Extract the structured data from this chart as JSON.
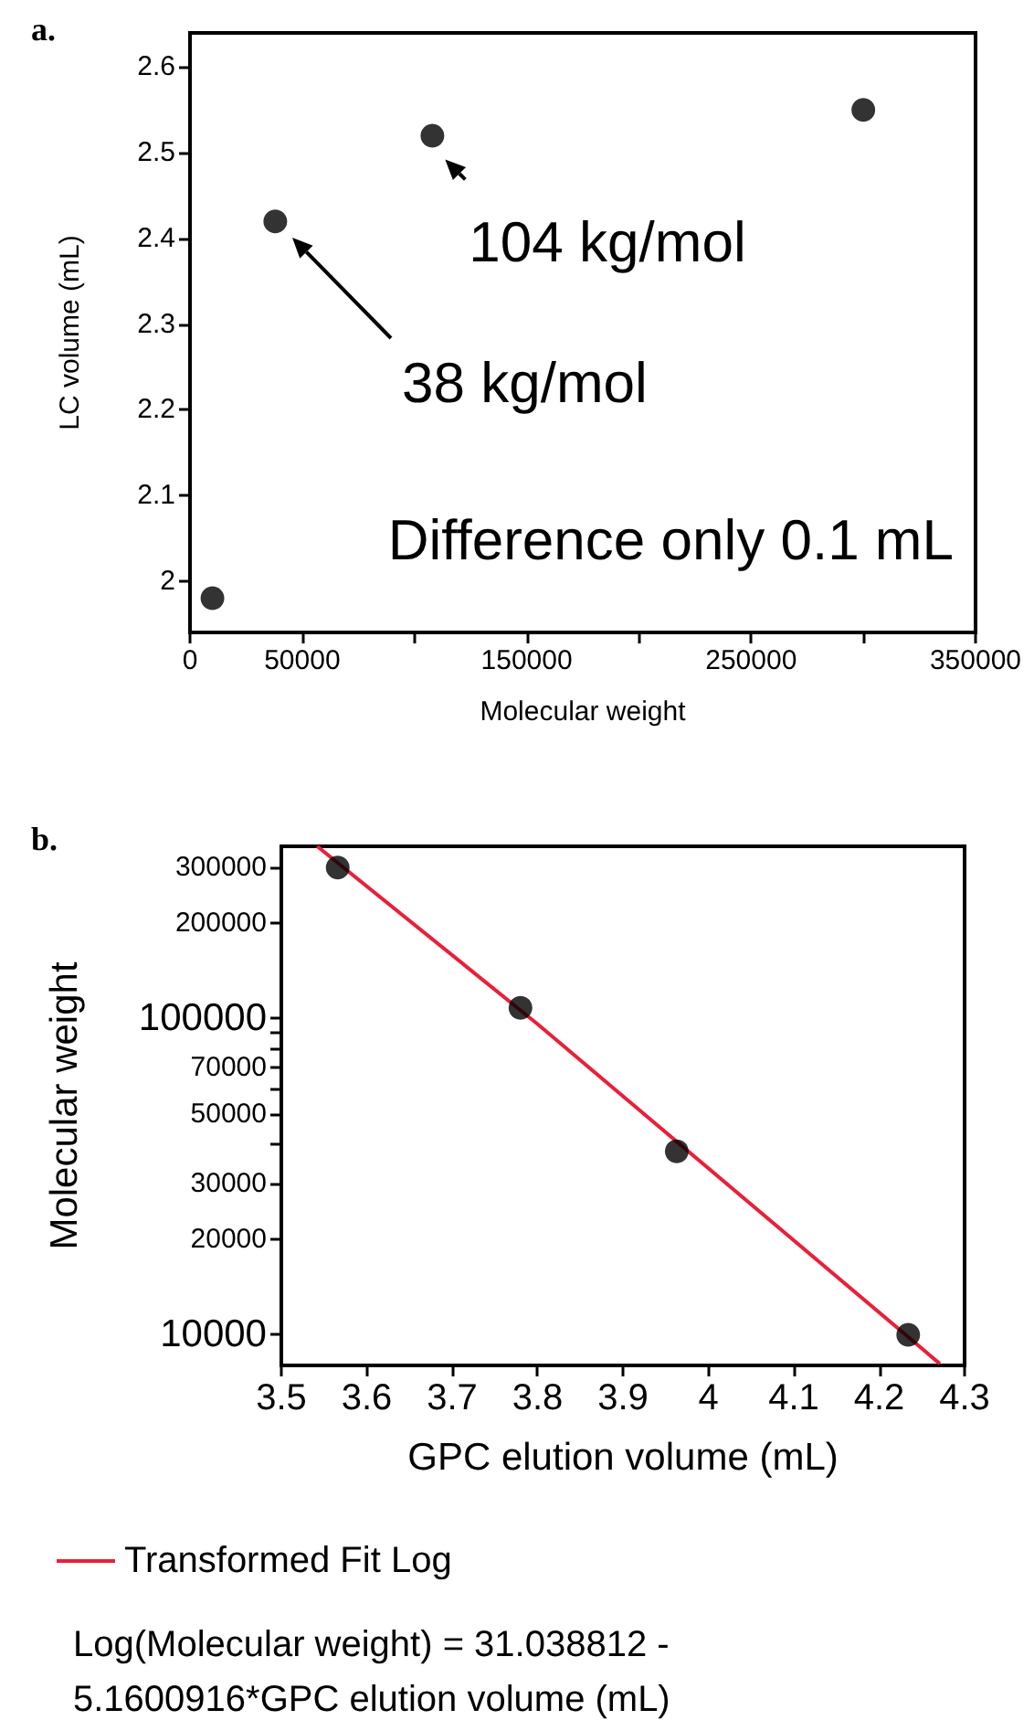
{
  "chart_data": [
    {
      "type": "scatter",
      "title": "a.",
      "xlabel": "Molecular weight",
      "ylabel": "LC volume (mL)",
      "marker": "circle",
      "grid": false,
      "x": [
        10000,
        38000,
        108000,
        300000
      ],
      "series": [
        {
          "color": "#000000",
          "values": [
            1.98,
            2.42,
            2.52,
            2.55
          ]
        }
      ],
      "xlim": [
        0,
        350000
      ],
      "xticks": [
        0,
        50000,
        {
          "value": 100000,
          "label": null
        },
        150000,
        {
          "value": 200000,
          "label": null
        },
        250000,
        {
          "value": 300000,
          "label": null
        },
        350000
      ],
      "ylim": [
        1.94,
        2.64
      ],
      "yticks": [
        2,
        2.1,
        2.2,
        2.3,
        2.4,
        2.5,
        2.6
      ],
      "annotations": [
        {
          "text": "104 kg/mol",
          "x": 108000,
          "y": 2.52
        },
        "38 kg/mol",
        "Difference only 0.1 mL"
      ]
    },
    {
      "type": "scatter",
      "title": "b.",
      "xlabel": "GPC elution volume (mL)",
      "ylabel": "Molecular weight",
      "marker": "circle",
      "grid": false,
      "log": "y",
      "legend": "bottom",
      "x": [
        3.566,
        3.78,
        3.963,
        4.234
      ],
      "series": [
        {
          "color": "#000000",
          "values": [
            300000,
            108000,
            38000,
            10000
          ]
        },
        {
          "type": "line",
          "name": "Transformed Fit Log",
          "color": "#e8203a",
          "marker": "none",
          "x": [
            3.542,
            3.8,
            4.271
          ],
          "values": [
            350000,
            96000,
            8100
          ]
        }
      ],
      "xlim": [
        3.5,
        4.3
      ],
      "xticks": [
        3.5,
        3.6,
        3.7,
        3.8,
        3.9,
        4,
        4.1,
        4.2,
        4.3
      ],
      "ylim": [
        8000,
        350000
      ],
      "yticks": [
        10000,
        20000,
        30000,
        {
          "value": 40000,
          "label": null
        },
        50000,
        {
          "value": 60000,
          "label": null
        },
        70000,
        {
          "value": 80000,
          "label": null
        },
        {
          "value": 90000,
          "label": null
        },
        100000,
        200000,
        300000
      ],
      "annotations": [
        "Log(Molecular weight) = 31.038812 - 5.1600916*GPC elution volume (mL)"
      ]
    }
  ]
}
